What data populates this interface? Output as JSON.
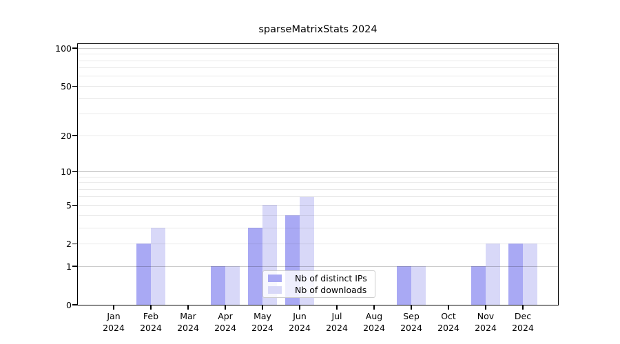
{
  "title": "sparseMatrixStats 2024",
  "chart_data": {
    "type": "bar",
    "title": "sparseMatrixStats 2024",
    "categories": [
      "Jan",
      "Feb",
      "Mar",
      "Apr",
      "May",
      "Jun",
      "Jul",
      "Aug",
      "Sep",
      "Oct",
      "Nov",
      "Dec"
    ],
    "category_year": "2024",
    "series": [
      {
        "name": "Nb of distinct IPs",
        "color": "#a9a9f4",
        "values": [
          0,
          2,
          0,
          1,
          3,
          4,
          0,
          0,
          1,
          0,
          1,
          2
        ]
      },
      {
        "name": "Nb of downloads",
        "color": "#d8d8f8",
        "values": [
          0,
          3,
          0,
          1,
          5,
          6,
          0,
          0,
          1,
          0,
          2,
          2
        ]
      }
    ],
    "yscale": "log1p",
    "ylim": [
      0,
      109
    ],
    "ytick_labels": [
      0,
      1,
      2,
      5,
      10,
      20,
      50,
      100
    ],
    "gridlines_major": [
      1,
      10,
      100
    ],
    "gridlines_minor": [
      2,
      3,
      4,
      5,
      6,
      7,
      8,
      9,
      20,
      30,
      40,
      50,
      60,
      70,
      80,
      90
    ],
    "grid": true,
    "xlabel": "",
    "ylabel": "",
    "legend_position": "lower center inside plot"
  },
  "legend": {
    "items": [
      {
        "label": "Nb of distinct IPs",
        "color": "#a9a9f4"
      },
      {
        "label": "Nb of downloads",
        "color": "#d8d8f8"
      }
    ]
  }
}
